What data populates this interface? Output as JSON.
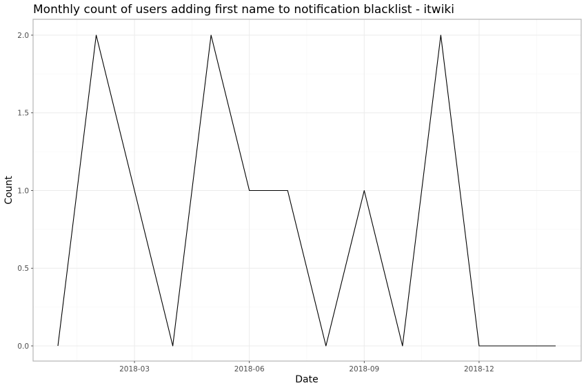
{
  "chart_data": {
    "type": "line",
    "title": "Monthly count of users adding first name to notification blacklist - itwiki",
    "xlabel": "Date",
    "ylabel": "Count",
    "x": [
      "2018-01",
      "2018-02",
      "2018-03",
      "2018-04",
      "2018-05",
      "2018-06",
      "2018-07",
      "2018-08",
      "2018-09",
      "2018-10",
      "2018-11",
      "2018-12",
      "2019-01",
      "2019-02"
    ],
    "series": [
      {
        "values": [
          0,
          2,
          1,
          0,
          2,
          1,
          1,
          0,
          1,
          0,
          2,
          0,
          0,
          0
        ]
      }
    ],
    "x_ticks": [
      "2018-03",
      "2018-06",
      "2018-09",
      "2018-12"
    ],
    "y_ticks": [
      "0.0",
      "0.5",
      "1.0",
      "1.5",
      "2.0"
    ],
    "ylim": [
      0,
      2
    ],
    "grid": true,
    "legend": "none",
    "line_color": "#000000"
  }
}
